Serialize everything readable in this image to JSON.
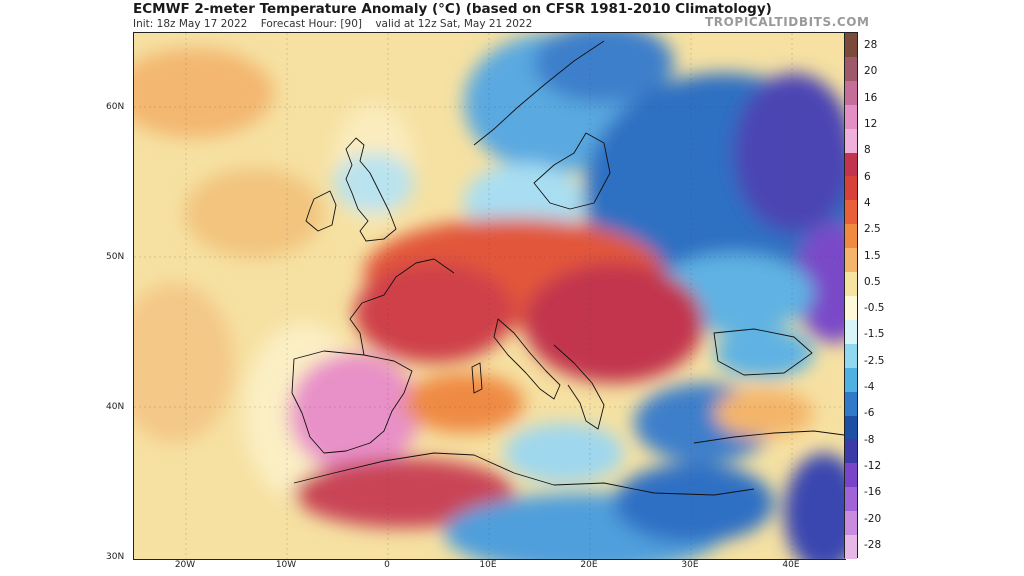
{
  "header": {
    "title": "ECMWF 2-meter Temperature Anomaly (°C) (based on CFSR 1981-2010 Climatology)",
    "init": "Init: 18z May 17 2022",
    "forecast_hour": "Forecast Hour: [90]",
    "valid": "valid at 12z Sat, May 21 2022",
    "brand": "TROPICALTIDBITS.COM"
  },
  "map": {
    "lat_labels": [
      "60N",
      "50N",
      "40N",
      "30N"
    ],
    "lon_labels": [
      "20W",
      "10W",
      "0",
      "10E",
      "20E",
      "30E",
      "40E"
    ]
  },
  "colorbar": {
    "labels": [
      "28",
      "20",
      "16",
      "12",
      "8",
      "6",
      "4",
      "2.5",
      "1.5",
      "0.5",
      "-0.5",
      "-1.5",
      "-2.5",
      "-4",
      "-6",
      "-8",
      "-12",
      "-16",
      "-20",
      "-28"
    ],
    "colors": [
      "#7a4a3a",
      "#9e5a6a",
      "#c56e9a",
      "#e38fc6",
      "#f0b0dc",
      "#c2344d",
      "#d8413a",
      "#e8603a",
      "#f08a40",
      "#f4b56a",
      "#f7e3a0",
      "#fdf8d8",
      "#d9f4f8",
      "#8fd8ef",
      "#4fb0e2",
      "#2f7bc9",
      "#1d4fa3",
      "#3c3aa8",
      "#7a44c8",
      "#a063d8",
      "#c98be0",
      "#e6b8e8"
    ],
    "color_roles": {
      "strong_warm": "#c2344d",
      "extreme_warm": "#e38fc6",
      "cool": "#4fb0e2",
      "cold": "#1d4fa3",
      "very_cold": "#7a44c8",
      "neutral": "#f7e3a0"
    }
  }
}
